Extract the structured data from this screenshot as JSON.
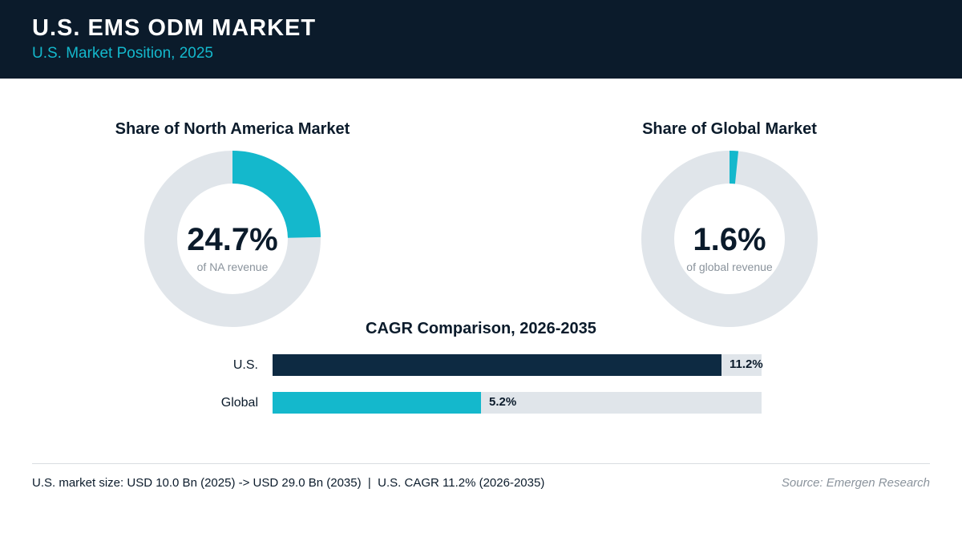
{
  "header": {
    "title": "U.S. EMS ODM MARKET",
    "subtitle": "U.S. Market Position, 2025"
  },
  "colors": {
    "header_bg": "#0b1b2b",
    "accent": "#14b8cc",
    "dark_bar": "#0d2a42",
    "track": "#e0e5ea",
    "muted_text": "#8a939c"
  },
  "chart_data": [
    {
      "type": "pie",
      "title": "Share of North America Market",
      "value_label": "24.7%",
      "caption": "of NA revenue",
      "values": [
        24.7,
        75.3
      ],
      "colors": [
        "#14b8cc",
        "#e0e5ea"
      ]
    },
    {
      "type": "pie",
      "title": "Share of Global Market",
      "value_label": "1.6%",
      "caption": "of global revenue",
      "values": [
        1.6,
        98.4
      ],
      "colors": [
        "#14b8cc",
        "#e0e5ea"
      ]
    },
    {
      "type": "bar",
      "title": "CAGR Comparison, 2026-2035",
      "categories": [
        "U.S.",
        "Global"
      ],
      "values": [
        11.2,
        5.2
      ],
      "value_labels": [
        "11.2%",
        "5.2%"
      ],
      "colors": [
        "#0d2a42",
        "#14b8cc"
      ],
      "xlim": [
        0,
        12.2
      ],
      "orientation": "horizontal"
    }
  ],
  "footer": {
    "note": "U.S. market size: USD 10.0 Bn (2025) -> USD 29.0 Bn (2035)  |  U.S. CAGR 11.2% (2026-2035)",
    "source": "Source: Emergen Research"
  }
}
